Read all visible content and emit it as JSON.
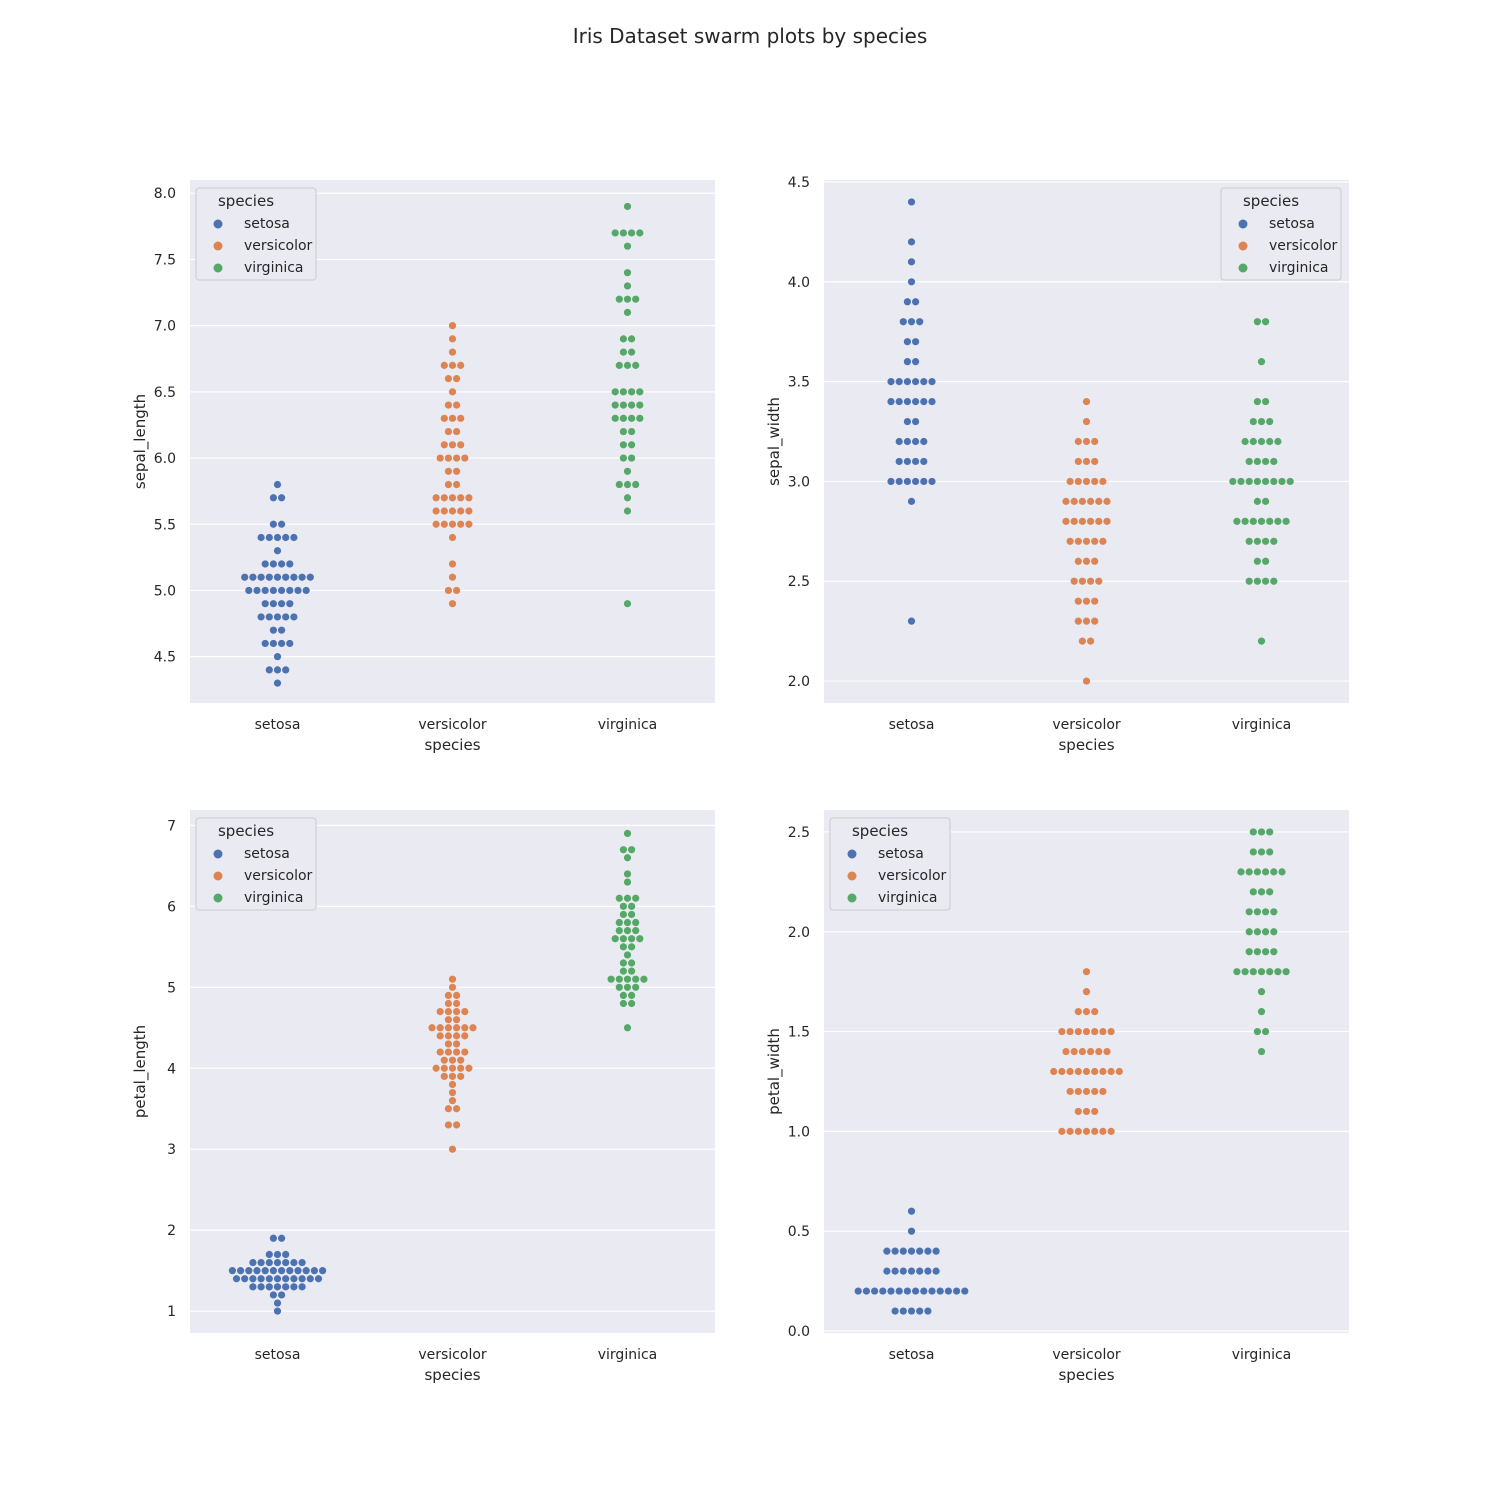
{
  "title": "Iris Dataset swarm plots by species",
  "colors": {
    "background": "#eaeaf2",
    "grid": "#ffffff",
    "setosa": "#4c72b0",
    "versicolor": "#dd8452",
    "virginica": "#55a868"
  },
  "chart_data": [
    {
      "type": "scatter",
      "variant": "swarm",
      "xlabel": "species",
      "ylabel": "sepal_length",
      "categories": [
        "setosa",
        "versicolor",
        "virginica"
      ],
      "ylim": [
        4.15,
        8.1
      ],
      "yticks": [
        "4.5",
        "5.0",
        "5.5",
        "6.0",
        "6.5",
        "7.0",
        "7.5",
        "8.0"
      ],
      "legend": {
        "title": "species",
        "position": "top-left",
        "entries": [
          "setosa",
          "versicolor",
          "virginica"
        ]
      },
      "series": [
        {
          "name": "setosa",
          "values": [
            5.8,
            5.7,
            5.7,
            5.5,
            5.5,
            5.4,
            5.4,
            5.4,
            5.4,
            5.4,
            5.3,
            5.2,
            5.2,
            5.2,
            5.2,
            5.1,
            5.1,
            5.1,
            5.1,
            5.1,
            5.1,
            5.1,
            5.1,
            5.1,
            5.0,
            5.0,
            5.0,
            5.0,
            5.0,
            5.0,
            5.0,
            5.0,
            4.9,
            4.9,
            4.9,
            4.9,
            4.8,
            4.8,
            4.8,
            4.8,
            4.8,
            4.7,
            4.7,
            4.6,
            4.6,
            4.6,
            4.6,
            4.5,
            4.4,
            4.4,
            4.4,
            4.3
          ]
        },
        {
          "name": "versicolor",
          "values": [
            7.0,
            6.9,
            6.8,
            6.7,
            6.7,
            6.7,
            6.6,
            6.6,
            6.5,
            6.4,
            6.4,
            6.3,
            6.3,
            6.3,
            6.2,
            6.2,
            6.1,
            6.1,
            6.1,
            6.0,
            6.0,
            6.0,
            6.0,
            5.9,
            5.9,
            5.8,
            5.8,
            5.7,
            5.7,
            5.7,
            5.7,
            5.7,
            5.6,
            5.6,
            5.6,
            5.6,
            5.6,
            5.5,
            5.5,
            5.5,
            5.5,
            5.5,
            5.4,
            5.2,
            5.1,
            5.0,
            5.0,
            4.9
          ]
        },
        {
          "name": "virginica",
          "values": [
            7.9,
            7.7,
            7.7,
            7.7,
            7.7,
            7.6,
            7.4,
            7.3,
            7.2,
            7.2,
            7.2,
            7.1,
            6.9,
            6.9,
            6.8,
            6.8,
            6.7,
            6.7,
            6.7,
            6.5,
            6.5,
            6.5,
            6.5,
            6.4,
            6.4,
            6.4,
            6.4,
            6.3,
            6.3,
            6.3,
            6.3,
            6.2,
            6.2,
            6.1,
            6.1,
            6.0,
            6.0,
            5.9,
            5.8,
            5.8,
            5.8,
            5.7,
            5.6,
            4.9
          ]
        }
      ]
    },
    {
      "type": "scatter",
      "variant": "swarm",
      "xlabel": "species",
      "ylabel": "sepal_width",
      "categories": [
        "setosa",
        "versicolor",
        "virginica"
      ],
      "ylim": [
        1.89,
        4.51
      ],
      "yticks": [
        "2.0",
        "2.5",
        "3.0",
        "3.5",
        "4.0",
        "4.5"
      ],
      "legend": {
        "title": "species",
        "position": "top-right",
        "entries": [
          "setosa",
          "versicolor",
          "virginica"
        ]
      },
      "series": [
        {
          "name": "setosa",
          "values": [
            4.4,
            4.2,
            4.1,
            4.0,
            3.9,
            3.9,
            3.8,
            3.8,
            3.8,
            3.7,
            3.7,
            3.6,
            3.6,
            3.5,
            3.5,
            3.5,
            3.5,
            3.5,
            3.5,
            3.4,
            3.4,
            3.4,
            3.4,
            3.4,
            3.4,
            3.3,
            3.3,
            3.2,
            3.2,
            3.2,
            3.2,
            3.1,
            3.1,
            3.1,
            3.1,
            3.0,
            3.0,
            3.0,
            3.0,
            3.0,
            3.0,
            2.9,
            2.3
          ]
        },
        {
          "name": "versicolor",
          "values": [
            3.4,
            3.3,
            3.2,
            3.2,
            3.2,
            3.1,
            3.1,
            3.1,
            3.0,
            3.0,
            3.0,
            3.0,
            3.0,
            2.9,
            2.9,
            2.9,
            2.9,
            2.9,
            2.9,
            2.8,
            2.8,
            2.8,
            2.8,
            2.8,
            2.8,
            2.7,
            2.7,
            2.7,
            2.7,
            2.7,
            2.6,
            2.6,
            2.6,
            2.5,
            2.5,
            2.5,
            2.5,
            2.4,
            2.4,
            2.4,
            2.3,
            2.3,
            2.3,
            2.2,
            2.2,
            2.0
          ]
        },
        {
          "name": "virginica",
          "values": [
            3.8,
            3.8,
            3.6,
            3.4,
            3.4,
            3.3,
            3.3,
            3.3,
            3.2,
            3.2,
            3.2,
            3.2,
            3.2,
            3.1,
            3.1,
            3.1,
            3.1,
            3.0,
            3.0,
            3.0,
            3.0,
            3.0,
            3.0,
            3.0,
            3.0,
            2.9,
            2.9,
            2.8,
            2.8,
            2.8,
            2.8,
            2.8,
            2.8,
            2.8,
            2.7,
            2.7,
            2.7,
            2.7,
            2.6,
            2.6,
            2.5,
            2.5,
            2.5,
            2.5,
            2.2
          ]
        }
      ]
    },
    {
      "type": "scatter",
      "variant": "swarm",
      "xlabel": "species",
      "ylabel": "petal_length",
      "categories": [
        "setosa",
        "versicolor",
        "virginica"
      ],
      "ylim": [
        0.73,
        7.19
      ],
      "yticks": [
        "1",
        "2",
        "3",
        "4",
        "5",
        "6",
        "7"
      ],
      "legend": {
        "title": "species",
        "position": "top-left",
        "entries": [
          "setosa",
          "versicolor",
          "virginica"
        ]
      },
      "series": [
        {
          "name": "setosa",
          "values": [
            1.9,
            1.9,
            1.7,
            1.7,
            1.7,
            1.6,
            1.6,
            1.6,
            1.6,
            1.6,
            1.6,
            1.6,
            1.5,
            1.5,
            1.5,
            1.5,
            1.5,
            1.5,
            1.5,
            1.5,
            1.5,
            1.5,
            1.5,
            1.5,
            1.4,
            1.4,
            1.4,
            1.4,
            1.4,
            1.4,
            1.4,
            1.4,
            1.4,
            1.4,
            1.4,
            1.3,
            1.3,
            1.3,
            1.3,
            1.3,
            1.3,
            1.3,
            1.2,
            1.2,
            1.1,
            1.0
          ]
        },
        {
          "name": "versicolor",
          "values": [
            5.1,
            5.0,
            4.9,
            4.9,
            4.8,
            4.8,
            4.7,
            4.7,
            4.7,
            4.7,
            4.6,
            4.6,
            4.5,
            4.5,
            4.5,
            4.5,
            4.5,
            4.5,
            4.4,
            4.4,
            4.4,
            4.4,
            4.3,
            4.3,
            4.2,
            4.2,
            4.2,
            4.2,
            4.1,
            4.1,
            4.1,
            4.0,
            4.0,
            4.0,
            4.0,
            4.0,
            3.9,
            3.9,
            3.9,
            3.8,
            3.7,
            3.6,
            3.5,
            3.5,
            3.3,
            3.3,
            3.0
          ]
        },
        {
          "name": "virginica",
          "values": [
            6.9,
            6.7,
            6.7,
            6.6,
            6.4,
            6.3,
            6.1,
            6.1,
            6.1,
            6.0,
            6.0,
            5.9,
            5.9,
            5.8,
            5.8,
            5.8,
            5.7,
            5.7,
            5.7,
            5.6,
            5.6,
            5.6,
            5.6,
            5.5,
            5.5,
            5.4,
            5.3,
            5.3,
            5.2,
            5.2,
            5.1,
            5.1,
            5.1,
            5.1,
            5.1,
            5.0,
            5.0,
            5.0,
            4.9,
            4.9,
            4.8,
            4.8,
            4.5
          ]
        }
      ]
    },
    {
      "type": "scatter",
      "variant": "swarm",
      "xlabel": "species",
      "ylabel": "petal_width",
      "categories": [
        "setosa",
        "versicolor",
        "virginica"
      ],
      "ylim": [
        -0.01,
        2.61
      ],
      "yticks": [
        "0.0",
        "0.5",
        "1.0",
        "1.5",
        "2.0",
        "2.5"
      ],
      "legend": {
        "title": "species",
        "position": "top-left",
        "entries": [
          "setosa",
          "versicolor",
          "virginica"
        ]
      },
      "series": [
        {
          "name": "setosa",
          "values": [
            0.6,
            0.5,
            0.4,
            0.4,
            0.4,
            0.4,
            0.4,
            0.4,
            0.4,
            0.3,
            0.3,
            0.3,
            0.3,
            0.3,
            0.3,
            0.3,
            0.2,
            0.2,
            0.2,
            0.2,
            0.2,
            0.2,
            0.2,
            0.2,
            0.2,
            0.2,
            0.2,
            0.2,
            0.2,
            0.2,
            0.1,
            0.1,
            0.1,
            0.1,
            0.1
          ]
        },
        {
          "name": "versicolor",
          "values": [
            1.8,
            1.7,
            1.6,
            1.6,
            1.6,
            1.5,
            1.5,
            1.5,
            1.5,
            1.5,
            1.5,
            1.5,
            1.4,
            1.4,
            1.4,
            1.4,
            1.4,
            1.4,
            1.3,
            1.3,
            1.3,
            1.3,
            1.3,
            1.3,
            1.3,
            1.3,
            1.3,
            1.2,
            1.2,
            1.2,
            1.2,
            1.2,
            1.1,
            1.1,
            1.1,
            1.0,
            1.0,
            1.0,
            1.0,
            1.0,
            1.0,
            1.0
          ]
        },
        {
          "name": "virginica",
          "values": [
            2.5,
            2.5,
            2.5,
            2.4,
            2.4,
            2.4,
            2.3,
            2.3,
            2.3,
            2.3,
            2.3,
            2.3,
            2.2,
            2.2,
            2.2,
            2.1,
            2.1,
            2.1,
            2.1,
            2.0,
            2.0,
            2.0,
            2.0,
            1.9,
            1.9,
            1.9,
            1.9,
            1.8,
            1.8,
            1.8,
            1.8,
            1.8,
            1.8,
            1.8,
            1.7,
            1.6,
            1.5,
            1.5,
            1.4
          ]
        }
      ]
    }
  ]
}
